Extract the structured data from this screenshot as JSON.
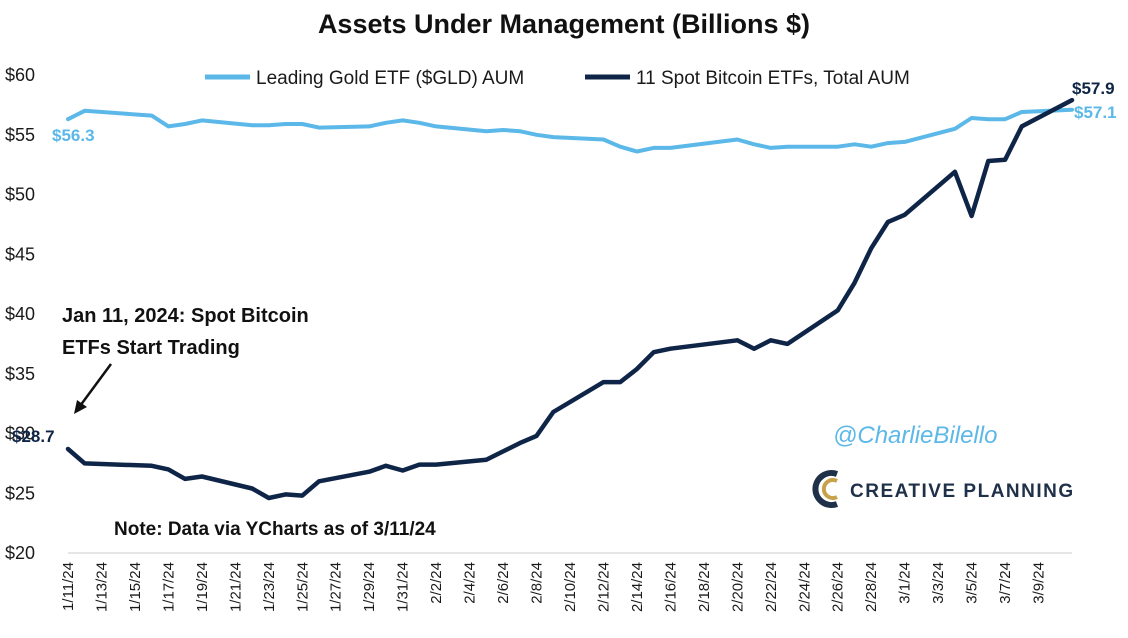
{
  "chart_data": {
    "type": "line",
    "title": "Assets Under Management (Billions $)",
    "xlabel": "",
    "ylabel": "",
    "ylim": [
      20,
      60
    ],
    "yticks": [
      "$20",
      "$25",
      "$30",
      "$35",
      "$40",
      "$45",
      "$50",
      "$55",
      "$60"
    ],
    "y_tick_values": [
      20,
      25,
      30,
      35,
      40,
      45,
      50,
      55,
      60
    ],
    "x": [
      "1/11/24",
      "1/12/24",
      "1/16/24",
      "1/17/24",
      "1/18/24",
      "1/19/24",
      "1/22/24",
      "1/23/24",
      "1/24/24",
      "1/25/24",
      "1/26/24",
      "1/29/24",
      "1/30/24",
      "1/31/24",
      "2/1/24",
      "2/2/24",
      "2/5/24",
      "2/6/24",
      "2/7/24",
      "2/8/24",
      "2/9/24",
      "2/12/24",
      "2/13/24",
      "2/14/24",
      "2/15/24",
      "2/16/24",
      "2/20/24",
      "2/21/24",
      "2/22/24",
      "2/23/24",
      "2/26/24",
      "2/27/24",
      "2/28/24",
      "2/29/24",
      "3/1/24",
      "3/4/24",
      "3/5/24",
      "3/6/24",
      "3/7/24",
      "3/8/24",
      "3/11/24"
    ],
    "x_day_offsets": [
      0,
      1,
      5,
      6,
      7,
      8,
      11,
      12,
      13,
      14,
      15,
      18,
      19,
      20,
      21,
      22,
      25,
      26,
      27,
      28,
      29,
      32,
      33,
      34,
      35,
      36,
      40,
      41,
      42,
      43,
      46,
      47,
      48,
      49,
      50,
      53,
      54,
      55,
      56,
      57,
      60
    ],
    "xticks": [
      "1/11/24",
      "1/13/24",
      "1/15/24",
      "1/17/24",
      "1/19/24",
      "1/21/24",
      "1/23/24",
      "1/25/24",
      "1/27/24",
      "1/29/24",
      "1/31/24",
      "2/2/24",
      "2/4/24",
      "2/6/24",
      "2/8/24",
      "2/10/24",
      "2/12/24",
      "2/14/24",
      "2/16/24",
      "2/18/24",
      "2/20/24",
      "2/22/24",
      "2/24/24",
      "2/26/24",
      "2/28/24",
      "3/1/24",
      "3/3/24",
      "3/5/24",
      "3/7/24",
      "3/9/24"
    ],
    "series": [
      {
        "name": "Leading Gold ETF ($GLD) AUM",
        "color": "#5bb8e8",
        "values": [
          56.3,
          57.0,
          56.6,
          55.7,
          55.9,
          56.2,
          55.8,
          55.8,
          55.9,
          55.9,
          55.6,
          55.7,
          56.0,
          56.2,
          56.0,
          55.7,
          55.3,
          55.4,
          55.3,
          55.0,
          54.8,
          54.6,
          54.0,
          53.6,
          53.9,
          53.9,
          54.6,
          54.2,
          53.9,
          54.0,
          54.0,
          54.2,
          54.0,
          54.3,
          54.4,
          55.5,
          56.4,
          56.3,
          56.3,
          56.9,
          57.1
        ]
      },
      {
        "name": "11 Spot Bitcoin ETFs, Total AUM",
        "color": "#0f2547",
        "values": [
          28.7,
          27.5,
          27.3,
          27.0,
          26.2,
          26.4,
          25.4,
          24.6,
          24.9,
          24.8,
          26.0,
          26.8,
          27.3,
          26.9,
          27.4,
          27.4,
          27.8,
          28.5,
          29.2,
          29.8,
          31.8,
          34.3,
          34.3,
          35.4,
          36.8,
          37.1,
          37.8,
          37.1,
          37.8,
          37.5,
          40.3,
          42.6,
          45.5,
          47.7,
          48.3,
          51.9,
          48.2,
          52.8,
          52.9,
          55.7,
          57.9
        ]
      }
    ],
    "data_labels": {
      "gold_start": "$56.3",
      "gold_end": "$57.1",
      "btc_start": "$28.7",
      "btc_end": "$57.9"
    },
    "annotation": {
      "line1": "Jan 11, 2024: Spot Bitcoin",
      "line2": "ETFs Start Trading"
    },
    "note": "Note: Data via YCharts as of 3/11/24",
    "legend_position": "top-center"
  },
  "branding": {
    "handle": "@CharlieBilello",
    "company": "CREATIVE PLANNING",
    "logo_color": "#1f3049",
    "logo_accent": "#c8a24a"
  }
}
